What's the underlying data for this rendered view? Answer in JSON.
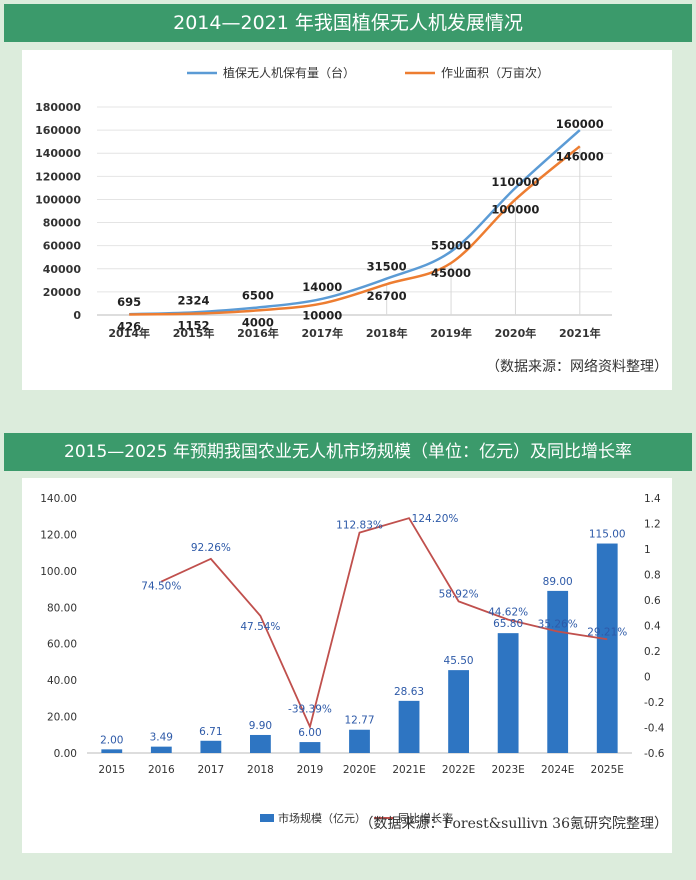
{
  "chart1": {
    "title": "2014—2021 年我国植保无人机发展情况",
    "source": "（数据来源：网络资料整理）",
    "chart_data": {
      "type": "line",
      "categories": [
        "2014年",
        "2015年",
        "2016年",
        "2017年",
        "2018年",
        "2019年",
        "2020年",
        "2021年"
      ],
      "series": [
        {
          "name": "植保无人机保有量（台）",
          "color": "#5b9bd5",
          "values": [
            695,
            2324,
            6500,
            14000,
            31500,
            55000,
            110000,
            160000
          ]
        },
        {
          "name": "作业面积（万亩次）",
          "color": "#ed7d31",
          "values": [
            426,
            1152,
            4000,
            10000,
            26700,
            45000,
            100000,
            146000
          ]
        }
      ],
      "ylim": [
        0,
        180000
      ],
      "yticks": [
        0,
        20000,
        40000,
        60000,
        80000,
        100000,
        120000,
        140000,
        160000,
        180000
      ]
    }
  },
  "chart2": {
    "title": "2015—2025 年预期我国农业无人机市场规模（单位：亿元）及同比增长率",
    "source": "（数据来源：Forest&sullivn 36氪研究院整理）",
    "chart_data": {
      "type": "bar",
      "categories": [
        "2015",
        "2016",
        "2017",
        "2018",
        "2019",
        "2020E",
        "2021E",
        "2022E",
        "2023E",
        "2024E",
        "2025E"
      ],
      "series": [
        {
          "name": "市场规模（亿元）",
          "type": "bar",
          "color": "#2e75c2",
          "values": [
            2.0,
            3.49,
            6.71,
            9.9,
            6.0,
            12.77,
            28.63,
            45.5,
            65.8,
            89.0,
            115.0
          ],
          "labels": [
            "2.00",
            "3.49",
            "6.71",
            "9.90",
            "6.00",
            "12.77",
            "28.63",
            "45.50",
            "65.80",
            "89.00",
            "115.00"
          ]
        },
        {
          "name": "同比增长率",
          "type": "line",
          "color": "#c0504d",
          "values": [
            null,
            0.745,
            0.9226,
            0.4754,
            -0.3939,
            1.1283,
            1.242,
            0.5892,
            0.4462,
            0.3526,
            0.2921
          ],
          "labels": [
            "",
            "74.50%",
            "92.26%",
            "47.54%",
            "-39.39%",
            "112.83%",
            "124.20%",
            "58.92%",
            "44.62%",
            "35.26%",
            "29.21%"
          ]
        }
      ],
      "ylim_left": [
        0,
        140
      ],
      "yticks_left": [
        "0.00",
        "20.00",
        "40.00",
        "60.00",
        "80.00",
        "100.00",
        "120.00",
        "140.00"
      ],
      "ylim_right": [
        -0.6,
        1.4
      ],
      "yticks_right": [
        "-0.6",
        "-0.4",
        "-0.2",
        "0",
        "0.2",
        "0.4",
        "0.6",
        "0.8",
        "1",
        "1.2",
        "1.4"
      ]
    }
  }
}
